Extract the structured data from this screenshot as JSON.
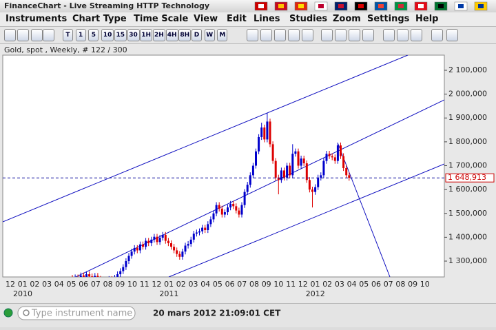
{
  "window": {
    "title": "FinanceChart - Live Streaming HTTP Technology"
  },
  "menu": [
    "Instruments",
    "Chart Type",
    "Time Scale",
    "View",
    "Edit",
    "Lines",
    "Studies",
    "Zoom",
    "Settings",
    "Help"
  ],
  "toolbar": [
    "T",
    "1",
    "5",
    "10",
    "15",
    "30",
    "1H",
    "2H",
    "4H",
    "8H",
    "D",
    "W",
    "M"
  ],
  "chart_data": {
    "type": "candlestick",
    "title": "Gold, spot , Weekly, # 122 / 300",
    "up_color": "#0000cc",
    "down_color": "#dd0000",
    "ylim": [
      1233.6,
      2163.5
    ],
    "yticks": [
      {
        "value": 1300,
        "label": "1 300,000"
      },
      {
        "value": 1400,
        "label": "1 400,000"
      },
      {
        "value": 1500,
        "label": "1 500,000"
      },
      {
        "value": 1600,
        "label": "1 600,000"
      },
      {
        "value": 1700,
        "label": "1 700,000"
      },
      {
        "value": 1800,
        "label": "1 800,000"
      },
      {
        "value": 1900,
        "label": "1 900,000"
      },
      {
        "value": 2000,
        "label": "2 000,000"
      },
      {
        "value": 2100,
        "label": "2 100,000"
      }
    ],
    "last_price": {
      "value": 1648.913,
      "label": "1 648,913"
    },
    "categories": [
      "12",
      "01",
      "02",
      "03",
      "04",
      "05",
      "06",
      "07",
      "08",
      "09",
      "10",
      "11",
      "12",
      "01",
      "02",
      "03",
      "04",
      "05",
      "06",
      "07",
      "08",
      "09",
      "10",
      "11",
      "12",
      "01",
      "02",
      "03",
      "04",
      "05",
      "06",
      "07",
      "08",
      "09",
      "10"
    ],
    "years": [
      "2010",
      "2011",
      "2012"
    ],
    "ohlc": [
      [
        1230,
        1242,
        1213,
        1225
      ],
      [
        1225,
        1244,
        1213,
        1232
      ],
      [
        1232,
        1244,
        1206,
        1218
      ],
      [
        1218,
        1252,
        1206,
        1240
      ],
      [
        1240,
        1252,
        1216,
        1228
      ],
      [
        1228,
        1257,
        1216,
        1245
      ],
      [
        1245,
        1257,
        1224,
        1236
      ],
      [
        1236,
        1248,
        1210,
        1222
      ],
      [
        1222,
        1250,
        1210,
        1238
      ],
      [
        1238,
        1250,
        1214,
        1226
      ],
      [
        1226,
        1238,
        1198,
        1210
      ],
      [
        1210,
        1222,
        1193,
        1205
      ],
      [
        1205,
        1230,
        1193,
        1218
      ],
      [
        1218,
        1237,
        1206,
        1225
      ],
      [
        1225,
        1237,
        1200,
        1212
      ],
      [
        1212,
        1242,
        1200,
        1230
      ],
      [
        1230,
        1257,
        1218,
        1245
      ],
      [
        1245,
        1270,
        1233,
        1258
      ],
      [
        1258,
        1287,
        1246,
        1275
      ],
      [
        1275,
        1312,
        1263,
        1300
      ],
      [
        1300,
        1334,
        1288,
        1322
      ],
      [
        1322,
        1352,
        1310,
        1340
      ],
      [
        1340,
        1367,
        1328,
        1355
      ],
      [
        1355,
        1367,
        1333,
        1345
      ],
      [
        1345,
        1382,
        1333,
        1370
      ],
      [
        1370,
        1382,
        1348,
        1360
      ],
      [
        1360,
        1397,
        1348,
        1385
      ],
      [
        1385,
        1397,
        1363,
        1375
      ],
      [
        1375,
        1402,
        1363,
        1390
      ],
      [
        1390,
        1414,
        1378,
        1402
      ],
      [
        1402,
        1414,
        1368,
        1380
      ],
      [
        1380,
        1410,
        1368,
        1398
      ],
      [
        1398,
        1422,
        1386,
        1410
      ],
      [
        1410,
        1422,
        1373,
        1385
      ],
      [
        1385,
        1397,
        1363,
        1375
      ],
      [
        1375,
        1387,
        1348,
        1360
      ],
      [
        1360,
        1372,
        1333,
        1345
      ],
      [
        1345,
        1357,
        1318,
        1330
      ],
      [
        1330,
        1342,
        1306,
        1318
      ],
      [
        1318,
        1352,
        1306,
        1340
      ],
      [
        1340,
        1377,
        1328,
        1365
      ],
      [
        1365,
        1384,
        1353,
        1372
      ],
      [
        1372,
        1402,
        1360,
        1390
      ],
      [
        1390,
        1427,
        1378,
        1415
      ],
      [
        1415,
        1432,
        1403,
        1420
      ],
      [
        1420,
        1437,
        1408,
        1425
      ],
      [
        1425,
        1452,
        1413,
        1440
      ],
      [
        1440,
        1452,
        1418,
        1430
      ],
      [
        1430,
        1467,
        1418,
        1455
      ],
      [
        1455,
        1487,
        1443,
        1475
      ],
      [
        1475,
        1512,
        1463,
        1500
      ],
      [
        1500,
        1547,
        1488,
        1535
      ],
      [
        1535,
        1547,
        1508,
        1520
      ],
      [
        1520,
        1532,
        1483,
        1495
      ],
      [
        1495,
        1517,
        1483,
        1505
      ],
      [
        1505,
        1537,
        1493,
        1525
      ],
      [
        1525,
        1552,
        1513,
        1540
      ],
      [
        1540,
        1552,
        1518,
        1530
      ],
      [
        1530,
        1542,
        1500,
        1512
      ],
      [
        1512,
        1524,
        1483,
        1495
      ],
      [
        1495,
        1547,
        1483,
        1535
      ],
      [
        1535,
        1602,
        1523,
        1590
      ],
      [
        1590,
        1632,
        1578,
        1620
      ],
      [
        1620,
        1672,
        1608,
        1660
      ],
      [
        1660,
        1712,
        1648,
        1700
      ],
      [
        1700,
        1772,
        1688,
        1760
      ],
      [
        1760,
        1832,
        1748,
        1820
      ],
      [
        1820,
        1880,
        1808,
        1860
      ],
      [
        1860,
        1872,
        1798,
        1810
      ],
      [
        1810,
        1920,
        1798,
        1885
      ],
      [
        1885,
        1897,
        1778,
        1790
      ],
      [
        1790,
        1802,
        1708,
        1720
      ],
      [
        1720,
        1732,
        1638,
        1650
      ],
      [
        1650,
        1662,
        1580,
        1640
      ],
      [
        1640,
        1692,
        1628,
        1680
      ],
      [
        1680,
        1692,
        1638,
        1650
      ],
      [
        1650,
        1712,
        1638,
        1700
      ],
      [
        1700,
        1712,
        1648,
        1660
      ],
      [
        1660,
        1790,
        1648,
        1750
      ],
      [
        1750,
        1772,
        1738,
        1760
      ],
      [
        1760,
        1772,
        1688,
        1700
      ],
      [
        1700,
        1742,
        1688,
        1730
      ],
      [
        1730,
        1742,
        1698,
        1710
      ],
      [
        1710,
        1722,
        1628,
        1640
      ],
      [
        1640,
        1652,
        1588,
        1600
      ],
      [
        1600,
        1612,
        1525,
        1590
      ],
      [
        1590,
        1622,
        1578,
        1610
      ],
      [
        1610,
        1662,
        1598,
        1650
      ],
      [
        1650,
        1672,
        1638,
        1660
      ],
      [
        1660,
        1732,
        1648,
        1720
      ],
      [
        1720,
        1762,
        1708,
        1750
      ],
      [
        1750,
        1762,
        1728,
        1740
      ],
      [
        1740,
        1752,
        1723,
        1735
      ],
      [
        1735,
        1747,
        1708,
        1720
      ],
      [
        1720,
        1795,
        1708,
        1785
      ],
      [
        1785,
        1797,
        1728,
        1740
      ],
      [
        1740,
        1752,
        1678,
        1690
      ],
      [
        1690,
        1702,
        1648,
        1660
      ],
      [
        1660,
        1672,
        1637,
        1649
      ]
    ]
  },
  "status": {
    "placeholder": "Type instrument name",
    "time": "20 mars 2012 21:09:01 CET"
  }
}
